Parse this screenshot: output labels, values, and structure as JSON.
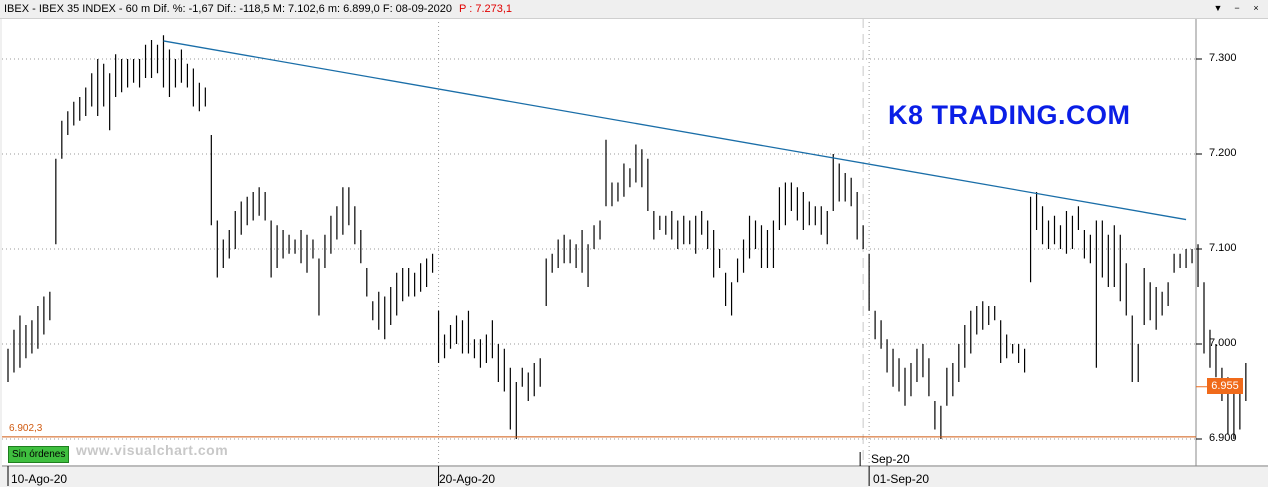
{
  "header": {
    "instrument_text": "IBEX - IBEX 35 INDEX -  60 m  Dif. %: -1,67  Dif.: -118,5  M: 7.102,6  m: 6.899,0  F: 08-09-2020",
    "last_price_text": "P : 7.273,1",
    "window_buttons": [
      "▼",
      "−",
      "×"
    ]
  },
  "brand_watermark": "K8 TRADING.COM",
  "site_watermark": "www.visualchart.com",
  "orders_button": "Sin órdenes",
  "chart_data": {
    "type": "bar",
    "style": "ohlc-bars",
    "title": "",
    "xlabel": "",
    "ylabel": "",
    "ylim": [
      6.88,
      7.33
    ],
    "grid": true,
    "yticks": [
      {
        "value": 7.3,
        "label": "7.300"
      },
      {
        "value": 7.2,
        "label": "7.200"
      },
      {
        "value": 7.1,
        "label": "7.100"
      },
      {
        "value": 7.0,
        "label": "7.000"
      },
      {
        "value": 6.9,
        "label": "6.900"
      }
    ],
    "xticks": [
      {
        "index": 0,
        "label": "10-Ago-20"
      },
      {
        "index": 72,
        "label": "20-Ago-20"
      },
      {
        "index": 144,
        "label": "01-Sep-20"
      }
    ],
    "month_marker": {
      "index": 143,
      "label": "Sep-20"
    },
    "last_value": {
      "value": 6.955,
      "label": "6.955"
    },
    "support_line": {
      "value": 6.9023,
      "label": "6.902,3"
    },
    "trendline": {
      "start": {
        "index": 26,
        "value": 7.319
      },
      "end": {
        "index": 197,
        "value": 7.131
      }
    },
    "colors": {
      "bars": "#000000",
      "trendline": "#1a6ea8",
      "support": "#d05a10",
      "brand": "#0a1ee6",
      "last_tag": "#f06a1a"
    },
    "bars": [
      [
        6.96,
        6.995
      ],
      [
        6.97,
        7.015
      ],
      [
        6.975,
        7.03
      ],
      [
        6.985,
        7.02
      ],
      [
        6.99,
        7.025
      ],
      [
        6.995,
        7.04
      ],
      [
        7.01,
        7.05
      ],
      [
        7.025,
        7.055
      ],
      [
        7.105,
        7.195
      ],
      [
        7.195,
        7.235
      ],
      [
        7.22,
        7.245
      ],
      [
        7.23,
        7.255
      ],
      [
        7.235,
        7.26
      ],
      [
        7.24,
        7.27
      ],
      [
        7.25,
        7.285
      ],
      [
        7.24,
        7.3
      ],
      [
        7.25,
        7.295
      ],
      [
        7.225,
        7.285
      ],
      [
        7.26,
        7.305
      ],
      [
        7.265,
        7.3
      ],
      [
        7.27,
        7.3
      ],
      [
        7.275,
        7.3
      ],
      [
        7.27,
        7.3
      ],
      [
        7.28,
        7.315
      ],
      [
        7.28,
        7.32
      ],
      [
        7.285,
        7.315
      ],
      [
        7.27,
        7.325
      ],
      [
        7.26,
        7.31
      ],
      [
        7.27,
        7.3
      ],
      [
        7.275,
        7.31
      ],
      [
        7.27,
        7.295
      ],
      [
        7.25,
        7.29
      ],
      [
        7.245,
        7.275
      ],
      [
        7.25,
        7.27
      ],
      [
        7.125,
        7.22
      ],
      [
        7.07,
        7.13
      ],
      [
        7.08,
        7.11
      ],
      [
        7.09,
        7.12
      ],
      [
        7.1,
        7.14
      ],
      [
        7.115,
        7.15
      ],
      [
        7.125,
        7.155
      ],
      [
        7.13,
        7.16
      ],
      [
        7.135,
        7.165
      ],
      [
        7.13,
        7.16
      ],
      [
        7.07,
        7.13
      ],
      [
        7.08,
        7.125
      ],
      [
        7.09,
        7.12
      ],
      [
        7.095,
        7.115
      ],
      [
        7.095,
        7.11
      ],
      [
        7.085,
        7.12
      ],
      [
        7.075,
        7.115
      ],
      [
        7.09,
        7.11
      ],
      [
        7.03,
        7.09
      ],
      [
        7.08,
        7.115
      ],
      [
        7.095,
        7.135
      ],
      [
        7.11,
        7.145
      ],
      [
        7.115,
        7.165
      ],
      [
        7.125,
        7.165
      ],
      [
        7.105,
        7.145
      ],
      [
        7.085,
        7.12
      ],
      [
        7.05,
        7.08
      ],
      [
        7.025,
        7.045
      ],
      [
        7.015,
        7.055
      ],
      [
        7.005,
        7.05
      ],
      [
        7.02,
        7.06
      ],
      [
        7.03,
        7.075
      ],
      [
        7.045,
        7.08
      ],
      [
        7.05,
        7.08
      ],
      [
        7.05,
        7.075
      ],
      [
        7.055,
        7.085
      ],
      [
        7.06,
        7.09
      ],
      [
        7.075,
        7.095
      ],
      [
        6.98,
        7.035
      ],
      [
        6.985,
        7.01
      ],
      [
        6.995,
        7.02
      ],
      [
        7.0,
        7.03
      ],
      [
        6.99,
        7.025
      ],
      [
        6.99,
        7.035
      ],
      [
        6.985,
        7.005
      ],
      [
        6.975,
        7.005
      ],
      [
        6.98,
        7.01
      ],
      [
        6.985,
        7.025
      ],
      [
        6.96,
        7.0
      ],
      [
        6.95,
        6.995
      ],
      [
        6.91,
        6.975
      ],
      [
        6.9,
        6.96
      ],
      [
        6.955,
        6.975
      ],
      [
        6.94,
        6.97
      ],
      [
        6.945,
        6.98
      ],
      [
        6.955,
        6.985
      ],
      [
        7.04,
        7.09
      ],
      [
        7.075,
        7.095
      ],
      [
        7.08,
        7.11
      ],
      [
        7.085,
        7.115
      ],
      [
        7.085,
        7.11
      ],
      [
        7.08,
        7.105
      ],
      [
        7.075,
        7.12
      ],
      [
        7.06,
        7.105
      ],
      [
        7.1,
        7.125
      ],
      [
        7.11,
        7.13
      ],
      [
        7.145,
        7.215
      ],
      [
        7.145,
        7.17
      ],
      [
        7.15,
        7.17
      ],
      [
        7.155,
        7.19
      ],
      [
        7.165,
        7.185
      ],
      [
        7.17,
        7.21
      ],
      [
        7.165,
        7.205
      ],
      [
        7.14,
        7.195
      ],
      [
        7.11,
        7.14
      ],
      [
        7.12,
        7.135
      ],
      [
        7.115,
        7.135
      ],
      [
        7.11,
        7.14
      ],
      [
        7.1,
        7.13
      ],
      [
        7.105,
        7.135
      ],
      [
        7.105,
        7.13
      ],
      [
        7.095,
        7.135
      ],
      [
        7.115,
        7.14
      ],
      [
        7.1,
        7.13
      ],
      [
        7.07,
        7.12
      ],
      [
        7.08,
        7.1
      ],
      [
        7.04,
        7.075
      ],
      [
        7.03,
        7.065
      ],
      [
        7.065,
        7.09
      ],
      [
        7.075,
        7.11
      ],
      [
        7.09,
        7.135
      ],
      [
        7.1,
        7.13
      ],
      [
        7.08,
        7.125
      ],
      [
        7.08,
        7.12
      ],
      [
        7.08,
        7.13
      ],
      [
        7.12,
        7.165
      ],
      [
        7.125,
        7.17
      ],
      [
        7.14,
        7.17
      ],
      [
        7.13,
        7.165
      ],
      [
        7.12,
        7.16
      ],
      [
        7.125,
        7.15
      ],
      [
        7.125,
        7.145
      ],
      [
        7.115,
        7.145
      ],
      [
        7.105,
        7.14
      ],
      [
        7.14,
        7.2
      ],
      [
        7.15,
        7.19
      ],
      [
        7.15,
        7.18
      ],
      [
        7.145,
        7.175
      ],
      [
        7.11,
        7.16
      ],
      [
        7.1,
        7.125
      ],
      [
        7.035,
        7.095
      ],
      [
        7.005,
        7.035
      ],
      [
        6.995,
        7.025
      ],
      [
        6.97,
        7.005
      ],
      [
        6.955,
        6.995
      ],
      [
        6.95,
        6.985
      ],
      [
        6.935,
        6.975
      ],
      [
        6.945,
        6.98
      ],
      [
        6.96,
        6.995
      ],
      [
        6.965,
        7.0
      ],
      [
        6.945,
        6.985
      ],
      [
        6.91,
        6.94
      ],
      [
        6.9,
        6.935
      ],
      [
        6.935,
        6.975
      ],
      [
        6.945,
        6.98
      ],
      [
        6.96,
        7.0
      ],
      [
        6.975,
        7.02
      ],
      [
        6.99,
        7.035
      ],
      [
        7.01,
        7.04
      ],
      [
        7.015,
        7.045
      ],
      [
        7.02,
        7.04
      ],
      [
        7.025,
        7.04
      ],
      [
        6.98,
        7.025
      ],
      [
        6.985,
        7.01
      ],
      [
        6.99,
        7.0
      ],
      [
        6.98,
        7.0
      ],
      [
        6.97,
        6.995
      ],
      [
        7.065,
        7.155
      ],
      [
        7.12,
        7.16
      ],
      [
        7.105,
        7.145
      ],
      [
        7.1,
        7.13
      ],
      [
        7.105,
        7.135
      ],
      [
        7.1,
        7.125
      ],
      [
        7.095,
        7.14
      ],
      [
        7.1,
        7.135
      ],
      [
        7.12,
        7.145
      ],
      [
        7.09,
        7.12
      ],
      [
        7.085,
        7.115
      ],
      [
        6.975,
        7.13
      ],
      [
        7.07,
        7.13
      ],
      [
        7.06,
        7.115
      ],
      [
        7.06,
        7.125
      ],
      [
        7.045,
        7.115
      ],
      [
        7.03,
        7.085
      ],
      [
        6.96,
        7.03
      ],
      [
        6.96,
        7.0
      ],
      [
        7.02,
        7.08
      ],
      [
        7.025,
        7.065
      ],
      [
        7.015,
        7.06
      ],
      [
        7.03,
        7.055
      ],
      [
        7.04,
        7.065
      ],
      [
        7.075,
        7.095
      ],
      [
        7.08,
        7.095
      ],
      [
        7.08,
        7.1
      ],
      [
        7.085,
        7.1
      ],
      [
        7.06,
        7.105
      ],
      [
        6.99,
        7.065
      ],
      [
        6.975,
        7.015
      ],
      [
        6.965,
        7.0
      ],
      [
        6.94,
        6.975
      ],
      [
        6.905,
        6.965
      ],
      [
        6.9,
        6.95
      ],
      [
        6.91,
        6.96
      ],
      [
        6.94,
        6.98
      ]
    ]
  }
}
